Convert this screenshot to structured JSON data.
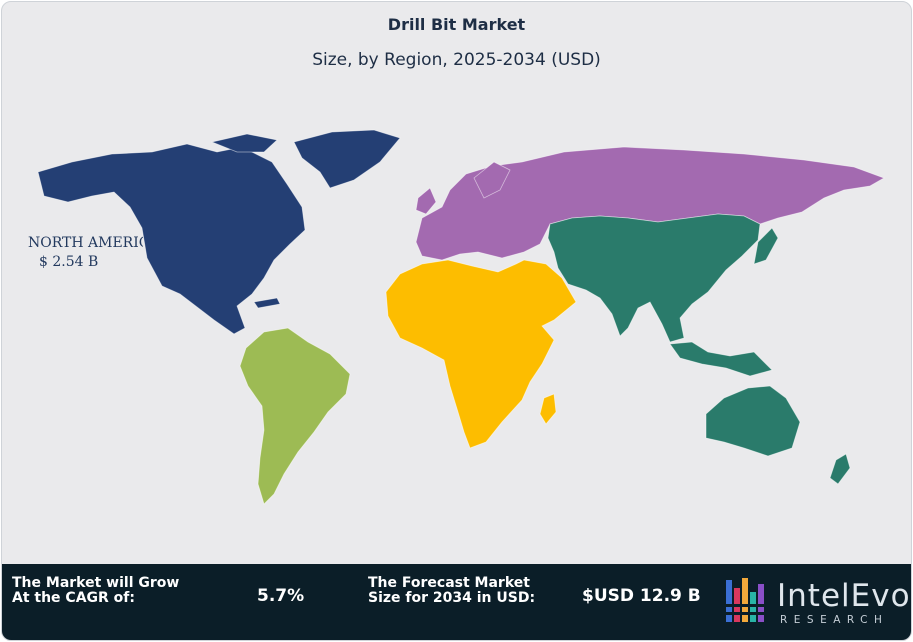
{
  "header": {
    "title": "Drill Bit Market",
    "subtitle": "Size, by Region, 2025-2034 (USD)"
  },
  "map": {
    "regions": [
      {
        "id": "north-america",
        "color": "#243f74"
      },
      {
        "id": "south-america",
        "color": "#9dbb54"
      },
      {
        "id": "europe-russia",
        "color": "#a36ab0"
      },
      {
        "id": "africa-middle-east",
        "color": "#fdbd00"
      },
      {
        "id": "asia-pacific",
        "color": "#2a7b6b"
      }
    ],
    "callout": {
      "region": "NORTH AMERICA",
      "value": "$ 2.54 B"
    },
    "background_color": "#eaeaec"
  },
  "footer": {
    "cagr_label_line1": "The Market will Grow",
    "cagr_label_line2": "At the CAGR of:",
    "cagr_value": "5.7%",
    "forecast_label_line1": "The Forecast Market",
    "forecast_label_line2": "Size for 2034 in USD:",
    "forecast_value": "$USD 12.9 B",
    "background_color": "#0b1e28"
  },
  "logo": {
    "brand": "IntelEvo",
    "tagline": "RESEARCH"
  }
}
